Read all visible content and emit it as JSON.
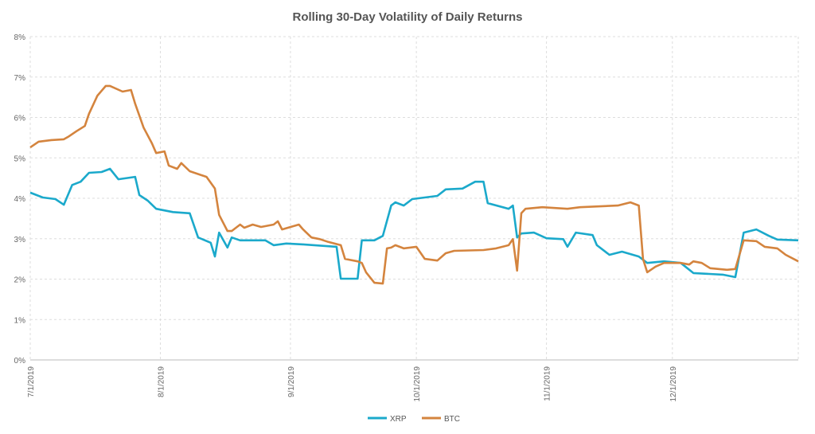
{
  "chart_data": {
    "type": "line",
    "title": "Rolling 30-Day Volatility of Daily Returns",
    "xlabel": "",
    "ylabel": "",
    "ylim": [
      0,
      8
    ],
    "y_ticks": [
      "0%",
      "1%",
      "2%",
      "3%",
      "4%",
      "5%",
      "6%",
      "7%",
      "8%"
    ],
    "x_ticks": [
      "7/1/2019",
      "8/1/2019",
      "9/1/2019",
      "10/1/2019",
      "11/1/2019",
      "12/1/2019"
    ],
    "xlim": [
      "7/1/2019",
      "12/31/2019"
    ],
    "grid": true,
    "legend": "bottom",
    "series": [
      {
        "name": "XRP",
        "color": "#1ba9cb",
        "points": [
          [
            "7/1/2019",
            4.14
          ],
          [
            "7/4/2019",
            4.02
          ],
          [
            "7/7/2019",
            3.98
          ],
          [
            "7/9/2019",
            3.84
          ],
          [
            "7/11/2019",
            4.33
          ],
          [
            "7/13/2019",
            4.41
          ],
          [
            "7/15/2019",
            4.63
          ],
          [
            "7/18/2019",
            4.65
          ],
          [
            "7/20/2019",
            4.73
          ],
          [
            "7/22/2019",
            4.47
          ],
          [
            "7/26/2019",
            4.53
          ],
          [
            "7/27/2019",
            4.08
          ],
          [
            "7/29/2019",
            3.94
          ],
          [
            "7/31/2019",
            3.74
          ],
          [
            "8/4/2019",
            3.66
          ],
          [
            "8/8/2019",
            3.63
          ],
          [
            "8/10/2019",
            3.03
          ],
          [
            "8/13/2019",
            2.9
          ],
          [
            "8/14/2019",
            2.56
          ],
          [
            "8/15/2019",
            3.15
          ],
          [
            "8/17/2019",
            2.78
          ],
          [
            "8/18/2019",
            3.03
          ],
          [
            "8/20/2019",
            2.96
          ],
          [
            "8/26/2019",
            2.96
          ],
          [
            "8/28/2019",
            2.84
          ],
          [
            "8/31/2019",
            2.88
          ],
          [
            "9/4/2019",
            2.86
          ],
          [
            "9/12/2019",
            2.8
          ],
          [
            "9/13/2019",
            2.01
          ],
          [
            "9/17/2019",
            2.01
          ],
          [
            "9/18/2019",
            2.96
          ],
          [
            "9/21/2019",
            2.96
          ],
          [
            "9/23/2019",
            3.07
          ],
          [
            "9/25/2019",
            3.82
          ],
          [
            "9/26/2019",
            3.9
          ],
          [
            "9/28/2019",
            3.82
          ],
          [
            "9/30/2019",
            3.98
          ],
          [
            "10/6/2019",
            4.06
          ],
          [
            "10/8/2019",
            4.22
          ],
          [
            "10/12/2019",
            4.24
          ],
          [
            "10/15/2019",
            4.41
          ],
          [
            "10/17/2019",
            4.41
          ],
          [
            "10/18/2019",
            3.88
          ],
          [
            "10/23/2019",
            3.74
          ],
          [
            "10/24/2019",
            3.82
          ],
          [
            "10/25/2019",
            3.03
          ],
          [
            "10/26/2019",
            3.13
          ],
          [
            "10/29/2019",
            3.15
          ],
          [
            "11/1/2019",
            3.01
          ],
          [
            "11/5/2019",
            2.99
          ],
          [
            "11/6/2019",
            2.8
          ],
          [
            "11/8/2019",
            3.15
          ],
          [
            "11/12/2019",
            3.09
          ],
          [
            "11/13/2019",
            2.84
          ],
          [
            "11/16/2019",
            2.6
          ],
          [
            "11/19/2019",
            2.68
          ],
          [
            "11/23/2019",
            2.56
          ],
          [
            "11/25/2019",
            2.4
          ],
          [
            "11/29/2019",
            2.44
          ],
          [
            "12/3/2019",
            2.4
          ],
          [
            "12/6/2019",
            2.15
          ],
          [
            "12/13/2019",
            2.11
          ],
          [
            "12/16/2019",
            2.05
          ],
          [
            "12/18/2019",
            3.15
          ],
          [
            "12/21/2019",
            3.23
          ],
          [
            "12/24/2019",
            3.07
          ],
          [
            "12/26/2019",
            2.98
          ],
          [
            "12/31/2019",
            2.96
          ]
        ]
      },
      {
        "name": "BTC",
        "color": "#d4843e",
        "points": [
          [
            "7/1/2019",
            5.26
          ],
          [
            "7/3/2019",
            5.4
          ],
          [
            "7/6/2019",
            5.44
          ],
          [
            "7/9/2019",
            5.46
          ],
          [
            "7/10/2019",
            5.52
          ],
          [
            "7/12/2019",
            5.66
          ],
          [
            "7/14/2019",
            5.79
          ],
          [
            "7/15/2019",
            6.09
          ],
          [
            "7/17/2019",
            6.54
          ],
          [
            "7/19/2019",
            6.78
          ],
          [
            "7/20/2019",
            6.78
          ],
          [
            "7/23/2019",
            6.64
          ],
          [
            "7/25/2019",
            6.68
          ],
          [
            "7/26/2019",
            6.34
          ],
          [
            "7/28/2019",
            5.75
          ],
          [
            "7/30/2019",
            5.36
          ],
          [
            "7/31/2019",
            5.12
          ],
          [
            "8/2/2019",
            5.16
          ],
          [
            "8/3/2019",
            4.81
          ],
          [
            "8/5/2019",
            4.73
          ],
          [
            "8/6/2019",
            4.87
          ],
          [
            "8/8/2019",
            4.67
          ],
          [
            "8/12/2019",
            4.53
          ],
          [
            "8/14/2019",
            4.24
          ],
          [
            "8/15/2019",
            3.59
          ],
          [
            "8/17/2019",
            3.19
          ],
          [
            "8/18/2019",
            3.19
          ],
          [
            "8/20/2019",
            3.35
          ],
          [
            "8/21/2019",
            3.27
          ],
          [
            "8/23/2019",
            3.35
          ],
          [
            "8/25/2019",
            3.29
          ],
          [
            "8/28/2019",
            3.35
          ],
          [
            "8/29/2019",
            3.43
          ],
          [
            "8/30/2019",
            3.23
          ],
          [
            "9/3/2019",
            3.35
          ],
          [
            "9/4/2019",
            3.23
          ],
          [
            "9/6/2019",
            3.03
          ],
          [
            "9/8/2019",
            2.99
          ],
          [
            "9/10/2019",
            2.92
          ],
          [
            "9/13/2019",
            2.84
          ],
          [
            "9/14/2019",
            2.5
          ],
          [
            "9/17/2019",
            2.44
          ],
          [
            "9/18/2019",
            2.4
          ],
          [
            "9/19/2019",
            2.17
          ],
          [
            "9/21/2019",
            1.91
          ],
          [
            "9/23/2019",
            1.89
          ],
          [
            "9/24/2019",
            2.76
          ],
          [
            "9/25/2019",
            2.78
          ],
          [
            "9/26/2019",
            2.84
          ],
          [
            "9/28/2019",
            2.76
          ],
          [
            "10/1/2019",
            2.8
          ],
          [
            "10/3/2019",
            2.5
          ],
          [
            "10/6/2019",
            2.46
          ],
          [
            "10/8/2019",
            2.64
          ],
          [
            "10/10/2019",
            2.7
          ],
          [
            "10/17/2019",
            2.72
          ],
          [
            "10/20/2019",
            2.76
          ],
          [
            "10/23/2019",
            2.84
          ],
          [
            "10/24/2019",
            2.99
          ],
          [
            "10/25/2019",
            2.21
          ],
          [
            "10/26/2019",
            3.63
          ],
          [
            "10/27/2019",
            3.74
          ],
          [
            "10/31/2019",
            3.78
          ],
          [
            "11/6/2019",
            3.74
          ],
          [
            "11/9/2019",
            3.78
          ],
          [
            "11/18/2019",
            3.82
          ],
          [
            "11/21/2019",
            3.9
          ],
          [
            "11/23/2019",
            3.82
          ],
          [
            "11/24/2019",
            2.5
          ],
          [
            "11/25/2019",
            2.17
          ],
          [
            "11/27/2019",
            2.31
          ],
          [
            "11/29/2019",
            2.4
          ],
          [
            "12/3/2019",
            2.4
          ],
          [
            "12/5/2019",
            2.36
          ],
          [
            "12/6/2019",
            2.44
          ],
          [
            "12/8/2019",
            2.4
          ],
          [
            "12/10/2019",
            2.27
          ],
          [
            "12/14/2019",
            2.23
          ],
          [
            "12/16/2019",
            2.25
          ],
          [
            "12/18/2019",
            2.96
          ],
          [
            "12/21/2019",
            2.94
          ],
          [
            "12/23/2019",
            2.8
          ],
          [
            "12/26/2019",
            2.76
          ],
          [
            "12/28/2019",
            2.6
          ],
          [
            "12/31/2019",
            2.44
          ]
        ]
      }
    ]
  }
}
